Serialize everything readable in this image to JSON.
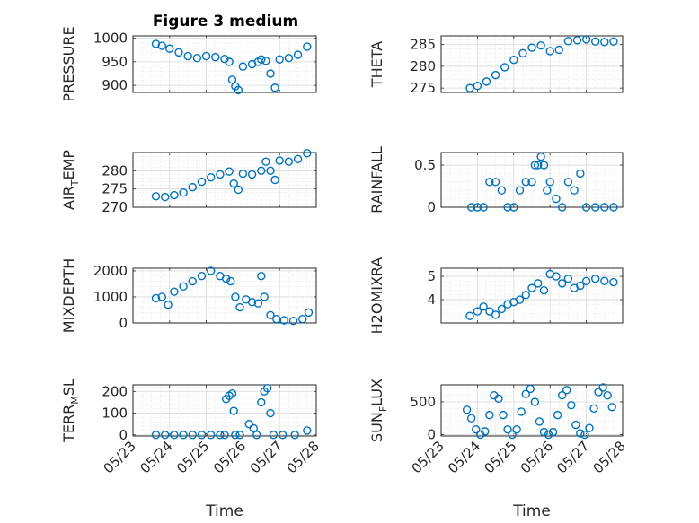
{
  "figure": {
    "title": "Figure 3 medium"
  },
  "chart_data": [
    {
      "id": "pressure",
      "type": "scatter",
      "marker": "circle",
      "color": "#0072BD",
      "ylabel": "PRESSURE",
      "xlabel": "",
      "title": "Figure 3 medium",
      "xlim": [
        "05/23",
        "05/28"
      ],
      "xticks": [
        "05/23",
        "05/24",
        "05/25",
        "05/26",
        "05/27",
        "05/28"
      ],
      "ylim": [
        885,
        1005
      ],
      "yticks": [
        900,
        950,
        1000
      ],
      "ytick_labels": [
        "900",
        "950",
        "1000"
      ],
      "grid": true,
      "minor_grid": true,
      "x": [
        "05/23 15:00",
        "05/23 19:00",
        "05/24 00:00",
        "05/24 06:00",
        "05/24 12:00",
        "05/24 18:00",
        "05/25 00:00",
        "05/25 06:00",
        "05/25 12:00",
        "05/25 15:00",
        "05/25 17:00",
        "05/25 19:00",
        "05/25 21:00",
        "05/26 00:00",
        "05/26 06:00",
        "05/26 10:00",
        "05/26 12:00",
        "05/26 15:00",
        "05/26 18:00",
        "05/26 21:00",
        "05/27 00:00",
        "05/27 06:00",
        "05/27 12:00",
        "05/27 18:00"
      ],
      "y": [
        988,
        984,
        978,
        970,
        962,
        958,
        962,
        960,
        956,
        950,
        912,
        898,
        890,
        940,
        945,
        950,
        955,
        952,
        925,
        895,
        955,
        958,
        965,
        982
      ]
    },
    {
      "id": "theta",
      "type": "scatter",
      "marker": "circle",
      "color": "#0072BD",
      "ylabel": "THETA",
      "xlabel": "",
      "xlim": [
        "05/23",
        "05/28"
      ],
      "xticks": [
        "05/23",
        "05/24",
        "05/25",
        "05/26",
        "05/27",
        "05/28"
      ],
      "ylim": [
        274,
        287
      ],
      "yticks": [
        275,
        280,
        285
      ],
      "ytick_labels": [
        "275",
        "280",
        "285"
      ],
      "grid": true,
      "minor_grid": true,
      "x": [
        "05/23 19:00",
        "05/24 00:00",
        "05/24 06:00",
        "05/24 12:00",
        "05/24 18:00",
        "05/25 00:00",
        "05/25 06:00",
        "05/25 12:00",
        "05/25 18:00",
        "05/26 00:00",
        "05/26 06:00",
        "05/26 12:00",
        "05/26 18:00",
        "05/27 00:00",
        "05/27 06:00",
        "05/27 12:00",
        "05/27 18:00"
      ],
      "y": [
        275.0,
        275.5,
        276.5,
        278.0,
        279.8,
        281.5,
        283.0,
        284.3,
        284.8,
        283.5,
        283.8,
        285.8,
        286.0,
        286.2,
        285.7,
        285.6,
        285.7
      ]
    },
    {
      "id": "air_temp",
      "type": "scatter",
      "marker": "circle",
      "color": "#0072BD",
      "ylabel": "AIR_TEMP",
      "ylabel_main": "AIR",
      "ylabel_sub": "T",
      "ylabel_rest": "EMP",
      "xlabel": "",
      "xlim": [
        "05/23",
        "05/28"
      ],
      "xticks": [
        "05/23",
        "05/24",
        "05/25",
        "05/26",
        "05/27",
        "05/28"
      ],
      "ylim": [
        270,
        285
      ],
      "yticks": [
        270,
        275,
        280
      ],
      "ytick_labels": [
        "270",
        "275",
        "280"
      ],
      "grid": true,
      "minor_grid": true,
      "x": [
        "05/23 15:00",
        "05/23 21:00",
        "05/24 03:00",
        "05/24 09:00",
        "05/24 15:00",
        "05/24 21:00",
        "05/25 03:00",
        "05/25 09:00",
        "05/25 15:00",
        "05/25 18:00",
        "05/25 21:00",
        "05/26 00:00",
        "05/26 06:00",
        "05/26 12:00",
        "05/26 15:00",
        "05/26 18:00",
        "05/26 21:00",
        "05/27 00:00",
        "05/27 06:00",
        "05/27 12:00",
        "05/27 18:00"
      ],
      "y": [
        273.0,
        272.8,
        273.3,
        274.0,
        275.5,
        277.0,
        278.2,
        279.0,
        279.8,
        276.5,
        274.8,
        279.2,
        279.0,
        280.0,
        282.5,
        280.0,
        277.5,
        282.8,
        282.5,
        283.2,
        284.8
      ]
    },
    {
      "id": "rainfall",
      "type": "scatter",
      "marker": "circle",
      "color": "#0072BD",
      "ylabel": "RAINFALL",
      "xlabel": "",
      "xlim": [
        "05/23",
        "05/28"
      ],
      "xticks": [
        "05/23",
        "05/24",
        "05/25",
        "05/26",
        "05/27",
        "05/28"
      ],
      "ylim": [
        0,
        0.65
      ],
      "yticks": [
        0,
        0.5
      ],
      "ytick_labels": [
        "0",
        "0.5"
      ],
      "grid": true,
      "minor_grid": true,
      "x": [
        "05/23 20:00",
        "05/24 00:00",
        "05/24 04:00",
        "05/24 08:00",
        "05/24 12:00",
        "05/24 16:00",
        "05/24 20:00",
        "05/25 00:00",
        "05/25 04:00",
        "05/25 08:00",
        "05/25 12:00",
        "05/25 14:00",
        "05/25 16:00",
        "05/25 18:00",
        "05/25 20:00",
        "05/25 22:00",
        "05/26 00:00",
        "05/26 04:00",
        "05/26 08:00",
        "05/26 12:00",
        "05/26 16:00",
        "05/26 20:00",
        "05/27 00:00",
        "05/27 06:00",
        "05/27 12:00",
        "05/27 18:00"
      ],
      "y": [
        0,
        0,
        0,
        0.3,
        0.3,
        0.2,
        0,
        0,
        0.2,
        0.3,
        0.3,
        0.5,
        0.5,
        0.6,
        0.5,
        0.2,
        0.3,
        0.1,
        0,
        0.3,
        0.2,
        0.4,
        0,
        0,
        0,
        0
      ]
    },
    {
      "id": "mixdepth",
      "type": "scatter",
      "marker": "circle",
      "color": "#0072BD",
      "ylabel": "MIXDEPTH",
      "xlabel": "",
      "xlim": [
        "05/23",
        "05/28"
      ],
      "xticks": [
        "05/23",
        "05/24",
        "05/25",
        "05/26",
        "05/27",
        "05/28"
      ],
      "ylim": [
        0,
        2100
      ],
      "yticks": [
        0,
        1000,
        2000
      ],
      "ytick_labels": [
        "0",
        "1000",
        "2000"
      ],
      "grid": true,
      "minor_grid": true,
      "x": [
        "05/23 15:00",
        "05/23 19:00",
        "05/23 23:00",
        "05/24 03:00",
        "05/24 09:00",
        "05/24 15:00",
        "05/24 21:00",
        "05/25 03:00",
        "05/25 09:00",
        "05/25 13:00",
        "05/25 16:00",
        "05/25 19:00",
        "05/25 22:00",
        "05/26 02:00",
        "05/26 06:00",
        "05/26 10:00",
        "05/26 12:00",
        "05/26 14:00",
        "05/26 18:00",
        "05/26 22:00",
        "05/27 03:00",
        "05/27 09:00",
        "05/27 15:00",
        "05/27 19:00"
      ],
      "y": [
        950,
        1000,
        700,
        1200,
        1400,
        1600,
        1800,
        2000,
        1800,
        1700,
        1600,
        1000,
        600,
        900,
        800,
        750,
        1800,
        1000,
        300,
        150,
        100,
        80,
        150,
        400
      ]
    },
    {
      "id": "h2omixra",
      "type": "scatter",
      "marker": "circle",
      "color": "#0072BD",
      "ylabel": "H2OMIXRA",
      "xlabel": "",
      "xlim": [
        "05/23",
        "05/28"
      ],
      "xticks": [
        "05/23",
        "05/24",
        "05/25",
        "05/26",
        "05/27",
        "05/28"
      ],
      "ylim": [
        3.0,
        5.35
      ],
      "yticks": [
        4,
        5
      ],
      "ytick_labels": [
        "4",
        "5"
      ],
      "grid": true,
      "minor_grid": true,
      "x": [
        "05/23 19:00",
        "05/24 00:00",
        "05/24 04:00",
        "05/24 08:00",
        "05/24 12:00",
        "05/24 16:00",
        "05/24 20:00",
        "05/25 00:00",
        "05/25 04:00",
        "05/25 08:00",
        "05/25 12:00",
        "05/25 16:00",
        "05/25 20:00",
        "05/26 00:00",
        "05/26 04:00",
        "05/26 08:00",
        "05/26 12:00",
        "05/26 16:00",
        "05/26 20:00",
        "05/27 00:00",
        "05/27 06:00",
        "05/27 12:00",
        "05/27 18:00"
      ],
      "y": [
        3.3,
        3.5,
        3.7,
        3.5,
        3.35,
        3.6,
        3.8,
        3.9,
        4.0,
        4.2,
        4.5,
        4.7,
        4.4,
        5.1,
        5.0,
        4.7,
        4.9,
        4.5,
        4.6,
        4.8,
        4.9,
        4.8,
        4.75
      ]
    },
    {
      "id": "terr_msl",
      "type": "scatter",
      "marker": "circle",
      "color": "#0072BD",
      "ylabel": "TERR_MSL",
      "ylabel_main": "TERR",
      "ylabel_sub": "M",
      "ylabel_rest": "SL",
      "xlabel": "Time",
      "xlim": [
        "05/23",
        "05/28"
      ],
      "xticks": [
        "05/23",
        "05/24",
        "05/25",
        "05/26",
        "05/27",
        "05/28"
      ],
      "ylim": [
        -5,
        230
      ],
      "yticks": [
        0,
        100,
        200
      ],
      "ytick_labels": [
        "0",
        "100",
        "200"
      ],
      "grid": true,
      "minor_grid": true,
      "x": [
        "05/23 15:00",
        "05/23 21:00",
        "05/24 03:00",
        "05/24 09:00",
        "05/24 15:00",
        "05/24 21:00",
        "05/25 03:00",
        "05/25 09:00",
        "05/25 12:00",
        "05/25 13:00",
        "05/25 15:00",
        "05/25 17:00",
        "05/25 18:00",
        "05/25 19:00",
        "05/25 22:00",
        "05/26 04:00",
        "05/26 07:00",
        "05/26 09:00",
        "05/26 12:00",
        "05/26 14:00",
        "05/26 16:00",
        "05/26 18:00",
        "05/26 20:00",
        "05/27 02:00",
        "05/27 10:00",
        "05/27 18:00"
      ],
      "y": [
        0,
        0,
        0,
        0,
        0,
        0,
        0,
        0,
        0,
        165,
        180,
        190,
        110,
        0,
        0,
        50,
        30,
        0,
        150,
        200,
        215,
        100,
        0,
        0,
        0,
        20
      ]
    },
    {
      "id": "sun_flux",
      "type": "scatter",
      "marker": "circle",
      "color": "#0072BD",
      "ylabel": "SUN_FLUX",
      "ylabel_main": "SUN",
      "ylabel_sub": "F",
      "ylabel_rest": "LUX",
      "xlabel": "Time",
      "xlim": [
        "05/23",
        "05/28"
      ],
      "xticks": [
        "05/23",
        "05/24",
        "05/25",
        "05/26",
        "05/27",
        "05/28"
      ],
      "ylim": [
        -20,
        760
      ],
      "yticks": [
        0,
        500
      ],
      "ytick_labels": [
        "0",
        "500"
      ],
      "grid": true,
      "minor_grid": true,
      "x": [
        "05/23 17:00",
        "05/23 20:00",
        "05/23 23:00",
        "05/24 02:00",
        "05/24 05:00",
        "05/24 08:00",
        "05/24 11:00",
        "05/24 14:00",
        "05/24 17:00",
        "05/24 20:00",
        "05/24 23:00",
        "05/25 02:00",
        "05/25 05:00",
        "05/25 08:00",
        "05/25 11:00",
        "05/25 14:00",
        "05/25 17:00",
        "05/25 20:00",
        "05/25 23:00",
        "05/26 02:00",
        "05/26 05:00",
        "05/26 08:00",
        "05/26 11:00",
        "05/26 14:00",
        "05/26 17:00",
        "05/26 20:00",
        "05/26 23:00",
        "05/27 02:00",
        "05/27 05:00",
        "05/27 08:00",
        "05/27 11:00",
        "05/27 14:00",
        "05/27 17:00"
      ],
      "y": [
        380,
        250,
        80,
        0,
        50,
        300,
        600,
        550,
        300,
        80,
        0,
        80,
        350,
        620,
        700,
        500,
        200,
        40,
        0,
        40,
        300,
        600,
        680,
        450,
        150,
        20,
        0,
        100,
        400,
        650,
        720,
        600,
        420
      ]
    }
  ]
}
